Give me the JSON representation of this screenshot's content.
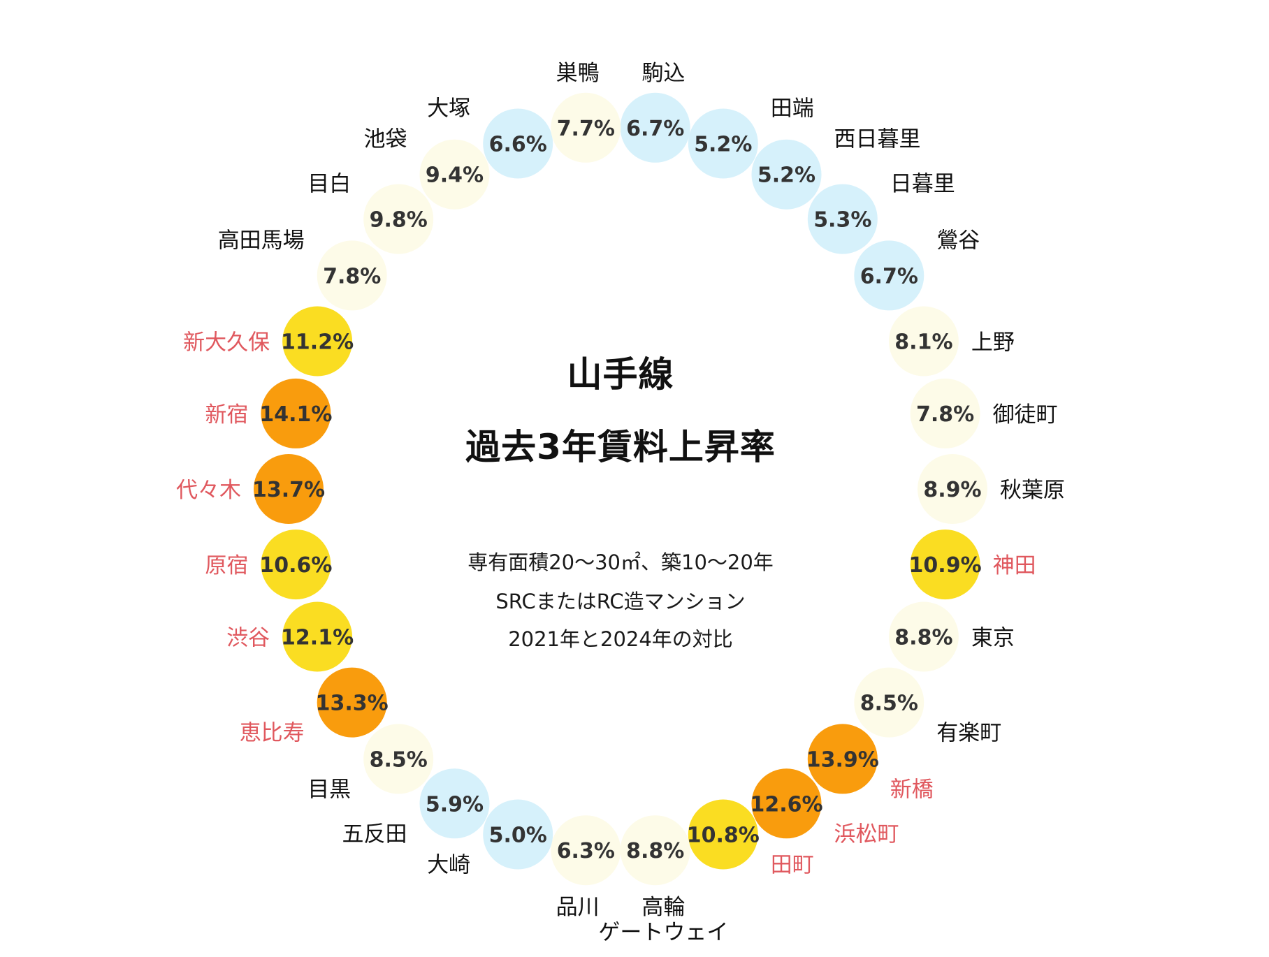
{
  "chart_data": {
    "type": "ring",
    "title_lines": [
      "山手線",
      "過去3年賃料上昇率"
    ],
    "subtitle_lines": [
      "専有面積20〜30㎡、築10〜20年",
      "SRCまたはRC造マンション",
      "2021年と2024年の対比"
    ],
    "colors": {
      "low_fill": "#d6f1fb",
      "mid_fill": "#fdfbe8",
      "high_fill": "#fadd22",
      "top_fill": "#f99c0d",
      "normal_label": "#111111",
      "highlight_label": "#e0585e",
      "value_text": "#333333"
    },
    "unit": "%",
    "stations": [
      {
        "name": "駒込",
        "value": 6.7,
        "category": "low"
      },
      {
        "name": "田端",
        "value": 5.2,
        "category": "low"
      },
      {
        "name": "西日暮里",
        "value": 5.2,
        "category": "low"
      },
      {
        "name": "日暮里",
        "value": 5.3,
        "category": "low"
      },
      {
        "name": "鶯谷",
        "value": 6.7,
        "category": "low"
      },
      {
        "name": "上野",
        "value": 8.1,
        "category": "mid"
      },
      {
        "name": "御徒町",
        "value": 7.8,
        "category": "mid"
      },
      {
        "name": "秋葉原",
        "value": 8.9,
        "category": "mid"
      },
      {
        "name": "神田",
        "value": 10.9,
        "category": "high"
      },
      {
        "name": "東京",
        "value": 8.8,
        "category": "mid"
      },
      {
        "name": "有楽町",
        "value": 8.5,
        "category": "mid"
      },
      {
        "name": "新橋",
        "value": 13.9,
        "category": "top"
      },
      {
        "name": "浜松町",
        "value": 12.6,
        "category": "top"
      },
      {
        "name": "田町",
        "value": 10.8,
        "category": "high"
      },
      {
        "name": "高輪\nゲートウェイ",
        "value": 8.8,
        "category": "mid"
      },
      {
        "name": "品川",
        "value": 6.3,
        "category": "mid"
      },
      {
        "name": "大崎",
        "value": 5.0,
        "category": "low"
      },
      {
        "name": "五反田",
        "value": 5.9,
        "category": "low"
      },
      {
        "name": "目黒",
        "value": 8.5,
        "category": "mid"
      },
      {
        "name": "恵比寿",
        "value": 13.3,
        "category": "top"
      },
      {
        "name": "渋谷",
        "value": 12.1,
        "category": "high"
      },
      {
        "name": "原宿",
        "value": 10.6,
        "category": "high"
      },
      {
        "name": "代々木",
        "value": 13.7,
        "category": "top"
      },
      {
        "name": "新宿",
        "value": 14.1,
        "category": "top"
      },
      {
        "name": "新大久保",
        "value": 11.2,
        "category": "high"
      },
      {
        "name": "高田馬場",
        "value": 7.8,
        "category": "mid"
      },
      {
        "name": "目白",
        "value": 9.8,
        "category": "mid"
      },
      {
        "name": "池袋",
        "value": 9.4,
        "category": "mid"
      },
      {
        "name": "大塚",
        "value": 6.6,
        "category": "low"
      },
      {
        "name": "巣鴨",
        "value": 7.7,
        "category": "mid"
      }
    ]
  }
}
